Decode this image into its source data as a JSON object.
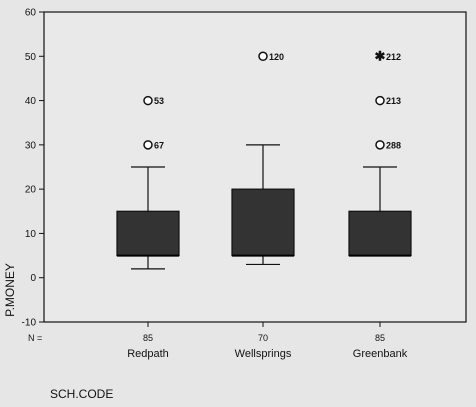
{
  "chart_data": {
    "type": "boxplot",
    "ylabel": "P.MONEY",
    "xlabel": "SCH.CODE",
    "ylim": [
      -10,
      60
    ],
    "yticks": [
      -10,
      0,
      10,
      20,
      30,
      40,
      50,
      60
    ],
    "n_label": "N =",
    "grid": false,
    "categories": [
      "Redpath",
      "Wellsprings",
      "Greenbank"
    ],
    "n_values": [
      "85",
      "70",
      "85"
    ],
    "boxes": [
      {
        "whisker_low": 2,
        "q1": 5,
        "median": 5,
        "q3": 15,
        "whisker_high": 25
      },
      {
        "whisker_low": 3,
        "q1": 5,
        "median": 5,
        "q3": 20,
        "whisker_high": 30
      },
      {
        "whisker_low": 5,
        "q1": 5,
        "median": 5,
        "q3": 15,
        "whisker_high": 25
      }
    ],
    "outliers": [
      {
        "category": "Redpath",
        "value": 40,
        "marker": "circle",
        "label": "53"
      },
      {
        "category": "Redpath",
        "value": 30,
        "marker": "circle",
        "label": "67"
      },
      {
        "category": "Wellsprings",
        "value": 50,
        "marker": "circle",
        "label": "120"
      },
      {
        "category": "Greenbank",
        "value": 50,
        "marker": "star",
        "label": "212"
      },
      {
        "category": "Greenbank",
        "value": 40,
        "marker": "circle",
        "label": "213"
      },
      {
        "category": "Greenbank",
        "value": 30,
        "marker": "circle",
        "label": "288"
      }
    ],
    "colors": {
      "box_fill": "#333333",
      "plot_bg": "#e9e9e9",
      "line": "#111111"
    }
  }
}
